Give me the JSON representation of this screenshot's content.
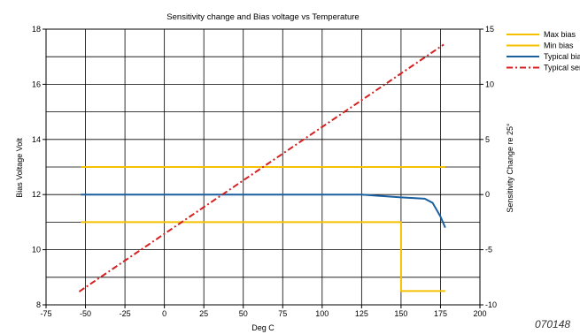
{
  "chart_data": {
    "type": "line",
    "title": "Sensitivity change and Bias voltage vs Temperature",
    "xlabel": "Deg C",
    "ylabel": "Bias Voltage Volt",
    "y2label": "Sensitivity Change re 25°",
    "xlim": [
      -75,
      200
    ],
    "ylim": [
      8,
      18
    ],
    "y2lim": [
      -10,
      15
    ],
    "xticks": [
      -75,
      -50,
      -25,
      0,
      25,
      50,
      75,
      100,
      125,
      150,
      175,
      200
    ],
    "yticks": [
      8,
      10,
      12,
      14,
      16,
      18
    ],
    "y2ticks": [
      -10,
      -5,
      0,
      5,
      10,
      15
    ],
    "x_minor_step": 25,
    "y_minor_step": 1,
    "grid": true,
    "legend_position": "right-outside",
    "series": [
      {
        "name": "Max bias",
        "axis": "left",
        "color": "#f5c000",
        "dash": "solid",
        "x": [
          -53,
          178
        ],
        "y": [
          13,
          13
        ]
      },
      {
        "name": "Min bias",
        "axis": "left",
        "color": "#f5c000",
        "dash": "solid",
        "x": [
          -53,
          150,
          150,
          178
        ],
        "y": [
          11,
          11,
          8.5,
          8.5
        ]
      },
      {
        "name": "Typical bias",
        "axis": "left",
        "color": "#1a5fa0",
        "dash": "solid",
        "x": [
          -53,
          0,
          50,
          100,
          125,
          150,
          165,
          170,
          175,
          178
        ],
        "y": [
          12,
          12,
          12,
          12,
          12,
          11.9,
          11.85,
          11.7,
          11.2,
          10.8
        ]
      },
      {
        "name": "Typical sensitivity",
        "axis": "right",
        "color": "#d42020",
        "dash": "dashdot",
        "x": [
          -54,
          177
        ],
        "y": [
          -8.8,
          13.6
        ]
      }
    ],
    "legend_display": [
      "Max bias",
      "Min bias",
      "Typical bias",
      "Typical sens"
    ]
  },
  "figure_code": "070148"
}
